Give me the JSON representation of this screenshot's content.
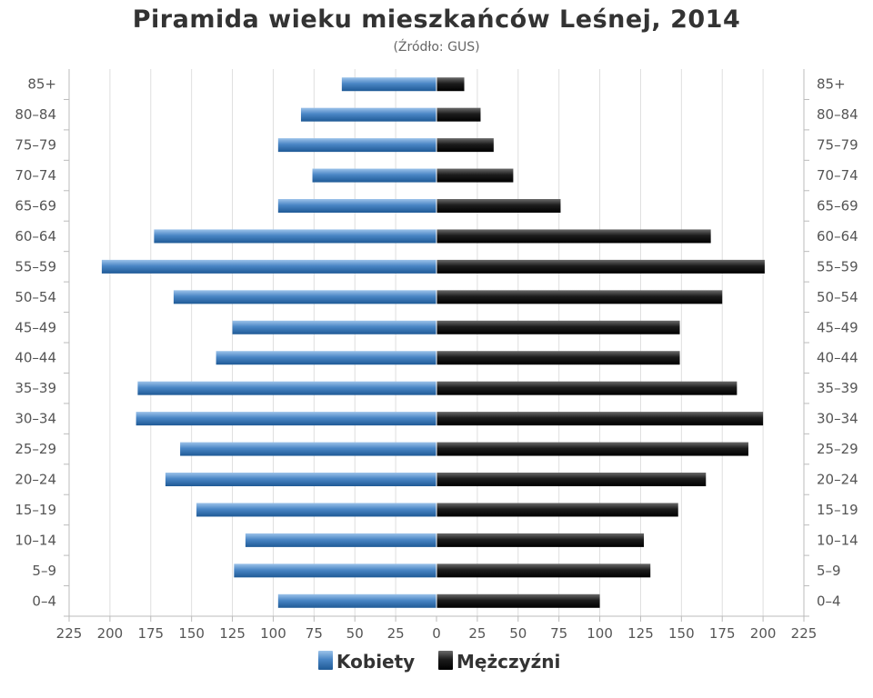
{
  "chart_data": {
    "type": "bar",
    "orientation": "horizontal-pyramid",
    "title": "Piramida wieku mieszkańców Leśnej, 2014",
    "subtitle": "(Źródło: GUS)",
    "categories": [
      "85+",
      "80–84",
      "75–79",
      "70–74",
      "65–69",
      "60–64",
      "55–59",
      "50–54",
      "45–49",
      "40–44",
      "35–39",
      "30–34",
      "25–29",
      "20–24",
      "15–19",
      "10–14",
      "5–9",
      "0–4"
    ],
    "series": [
      {
        "name": "Kobiety",
        "color": "#4a86c5",
        "values": [
          58,
          83,
          97,
          76,
          97,
          173,
          205,
          161,
          125,
          135,
          183,
          184,
          157,
          166,
          147,
          117,
          124,
          97
        ]
      },
      {
        "name": "Mężczyźni",
        "color": "#1a1a1a",
        "values": [
          17,
          27,
          35,
          47,
          76,
          168,
          201,
          175,
          149,
          149,
          184,
          200,
          191,
          165,
          148,
          127,
          131,
          100
        ]
      }
    ],
    "xlim": [
      -225,
      225
    ],
    "xticks": [
      -225,
      -200,
      -175,
      -150,
      -125,
      -100,
      -75,
      -50,
      -25,
      0,
      25,
      50,
      75,
      100,
      125,
      150,
      175,
      200,
      225
    ],
    "xtick_labels": [
      "225",
      "200",
      "175",
      "150",
      "125",
      "100",
      "75",
      "50",
      "25",
      "0",
      "25",
      "50",
      "75",
      "100",
      "125",
      "150",
      "175",
      "200",
      "225"
    ],
    "grid": true,
    "legend_position": "bottom-center"
  }
}
